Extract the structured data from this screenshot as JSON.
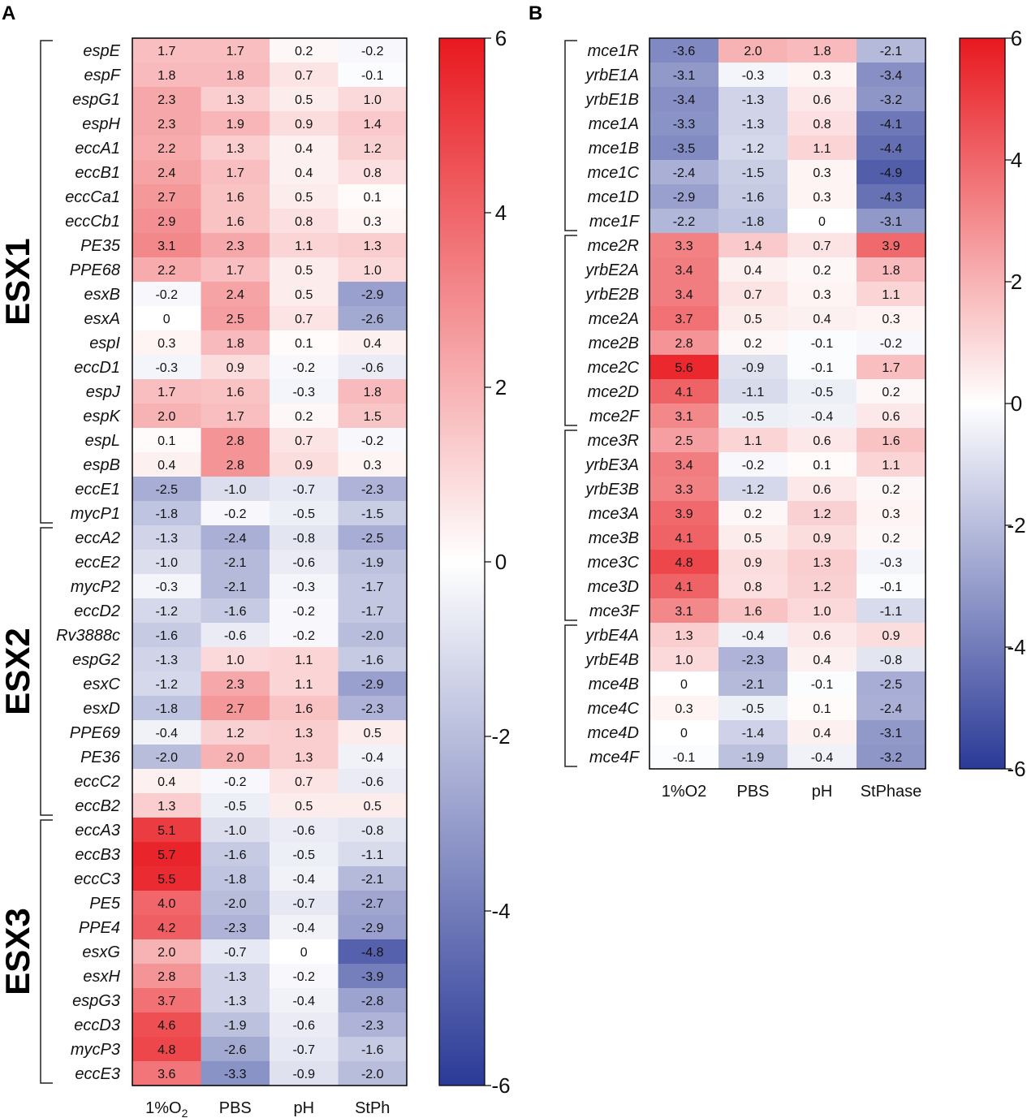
{
  "chart_data": [
    {
      "type": "heatmap",
      "panel_label": "A",
      "columns": [
        "1%O2",
        "PBS",
        "pH",
        "StPh"
      ],
      "column_labels": [
        {
          "main": "1%O",
          "sub": "2"
        },
        {
          "main": "PBS",
          "sub": ""
        },
        {
          "main": "pH",
          "sub": ""
        },
        {
          "main": "StPh",
          "sub": ""
        }
      ],
      "rows": [
        "espE",
        "espF",
        "espG1",
        "espH",
        "eccA1",
        "eccB1",
        "eccCa1",
        "eccCb1",
        "PE35",
        "PPE68",
        "esxB",
        "esxA",
        "espI",
        "eccD1",
        "espJ",
        "espK",
        "espL",
        "espB",
        "eccE1",
        "mycP1",
        "eccA2",
        "eccE2",
        "mycP2",
        "eccD2",
        "Rv3888c",
        "espG2",
        "esxC",
        "esxD",
        "PPE69",
        "PE36",
        "eccC2",
        "eccB2",
        "eccA3",
        "eccB3",
        "eccC3",
        "PE5",
        "PPE4",
        "esxG",
        "esxH",
        "espG3",
        "eccD3",
        "mycP3",
        "eccE3"
      ],
      "values": [
        [
          1.7,
          1.7,
          0.2,
          -0.2
        ],
        [
          1.8,
          1.8,
          0.7,
          -0.1
        ],
        [
          2.3,
          1.3,
          0.5,
          1.0
        ],
        [
          2.3,
          1.9,
          0.9,
          1.4
        ],
        [
          2.2,
          1.3,
          0.4,
          1.2
        ],
        [
          2.4,
          1.7,
          0.4,
          0.8
        ],
        [
          2.7,
          1.6,
          0.5,
          0.1
        ],
        [
          2.9,
          1.6,
          0.8,
          0.3
        ],
        [
          3.1,
          2.3,
          1.1,
          1.3
        ],
        [
          2.2,
          1.7,
          0.5,
          1.0
        ],
        [
          -0.2,
          2.4,
          0.5,
          -2.9
        ],
        [
          0,
          2.5,
          0.7,
          -2.6
        ],
        [
          0.3,
          1.8,
          0.1,
          0.4
        ],
        [
          -0.3,
          0.9,
          -0.2,
          -0.6
        ],
        [
          1.7,
          1.6,
          -0.3,
          1.8
        ],
        [
          2.0,
          1.7,
          0.2,
          1.5
        ],
        [
          0.1,
          2.8,
          0.7,
          -0.2
        ],
        [
          0.4,
          2.8,
          0.9,
          0.3
        ],
        [
          -2.5,
          -1.0,
          -0.7,
          -2.3
        ],
        [
          -1.8,
          -0.2,
          -0.5,
          -1.5
        ],
        [
          -1.3,
          -2.4,
          -0.8,
          -2.5
        ],
        [
          -1.0,
          -2.1,
          -0.6,
          -1.9
        ],
        [
          -0.3,
          -2.1,
          -0.3,
          -1.7
        ],
        [
          -1.2,
          -1.6,
          -0.2,
          -1.7
        ],
        [
          -1.6,
          -0.6,
          -0.2,
          -2.0
        ],
        [
          -1.3,
          1.0,
          1.1,
          -1.6
        ],
        [
          -1.2,
          2.3,
          1.1,
          -2.9
        ],
        [
          -1.8,
          2.7,
          1.6,
          -2.3
        ],
        [
          -0.4,
          1.2,
          1.3,
          0.5
        ],
        [
          -2.0,
          2.0,
          1.3,
          -0.4
        ],
        [
          0.4,
          -0.2,
          0.7,
          -0.6
        ],
        [
          1.3,
          -0.5,
          0.5,
          0.5
        ],
        [
          5.1,
          -1.0,
          -0.6,
          -0.8
        ],
        [
          5.7,
          -1.6,
          -0.5,
          -1.1
        ],
        [
          5.5,
          -1.8,
          -0.4,
          -2.1
        ],
        [
          4.0,
          -2.0,
          -0.7,
          -2.7
        ],
        [
          4.2,
          -2.3,
          -0.4,
          -2.9
        ],
        [
          2.0,
          -0.7,
          0,
          -4.8
        ],
        [
          2.8,
          -1.3,
          -0.2,
          -3.9
        ],
        [
          3.7,
          -1.3,
          -0.4,
          -2.8
        ],
        [
          4.6,
          -1.9,
          -0.6,
          -2.3
        ],
        [
          4.8,
          -2.6,
          -0.7,
          -1.6
        ],
        [
          3.6,
          -3.3,
          -0.9,
          -2.0
        ]
      ],
      "value_labels": [
        [
          "1.7",
          "1.7",
          "0.2",
          "-0.2"
        ],
        [
          "1.8",
          "1.8",
          "0.7",
          "-0.1"
        ],
        [
          "2.3",
          "1.3",
          "0.5",
          "1.0"
        ],
        [
          "2.3",
          "1.9",
          "0.9",
          "1.4"
        ],
        [
          "2.2",
          "1.3",
          "0.4",
          "1.2"
        ],
        [
          "2.4",
          "1.7",
          "0.4",
          "0.8"
        ],
        [
          "2.7",
          "1.6",
          "0.5",
          "0.1"
        ],
        [
          "2.9",
          "1.6",
          "0.8",
          "0.3"
        ],
        [
          "3.1",
          "2.3",
          "1.1",
          "1.3"
        ],
        [
          "2.2",
          "1.7",
          "0.5",
          "1.0"
        ],
        [
          "-0.2",
          "2.4",
          "0.5",
          "-2.9"
        ],
        [
          "0",
          "2.5",
          "0.7",
          "-2.6"
        ],
        [
          "0.3",
          "1.8",
          "0.1",
          "0.4"
        ],
        [
          "-0.3",
          "0.9",
          "-0.2",
          "-0.6"
        ],
        [
          "1.7",
          "1.6",
          "-0.3",
          "1.8"
        ],
        [
          "2.0",
          "1.7",
          "0.2",
          "1.5"
        ],
        [
          "0.1",
          "2.8",
          "0.7",
          "-0.2"
        ],
        [
          "0.4",
          "2.8",
          "0.9",
          "0.3"
        ],
        [
          "-2.5",
          "-1.0",
          "-0.7",
          "-2.3"
        ],
        [
          "-1.8",
          "-0.2",
          "-0.5",
          "-1.5"
        ],
        [
          "-1.3",
          "-2.4",
          "-0.8",
          "-2.5"
        ],
        [
          "-1.0",
          "-2.1",
          "-0.6",
          "-1.9"
        ],
        [
          "-0.3",
          "-2.1",
          "-0.3",
          "-1.7"
        ],
        [
          "-1.2",
          "-1.6",
          "-0.2",
          "-1.7"
        ],
        [
          "-1.6",
          "-0.6",
          "-0.2",
          "-2.0"
        ],
        [
          "-1.3",
          "1.0",
          "1.1",
          "-1.6"
        ],
        [
          "-1.2",
          "2.3",
          "1.1",
          "-2.9"
        ],
        [
          "-1.8",
          "2.7",
          "1.6",
          "-2.3"
        ],
        [
          "-0.4",
          "1.2",
          "1.3",
          "0.5"
        ],
        [
          "-2.0",
          "2.0",
          "1.3",
          "-0.4"
        ],
        [
          "0.4",
          "-0.2",
          "0.7",
          "-0.6"
        ],
        [
          "1.3",
          "-0.5",
          "0.5",
          "0.5"
        ],
        [
          "5.1",
          "-1.0",
          "-0.6",
          "-0.8"
        ],
        [
          "5.7",
          "-1.6",
          "-0.5",
          "-1.1"
        ],
        [
          "5.5",
          "-1.8",
          "-0.4",
          "-2.1"
        ],
        [
          "4.0",
          "-2.0",
          "-0.7",
          "-2.7"
        ],
        [
          "4.2",
          "-2.3",
          "-0.4",
          "-2.9"
        ],
        [
          "2.0",
          "-0.7",
          "0",
          "-4.8"
        ],
        [
          "2.8",
          "-1.3",
          "-0.2",
          "-3.9"
        ],
        [
          "3.7",
          "-1.3",
          "-0.4",
          "-2.8"
        ],
        [
          "4.6",
          "-1.9",
          "-0.6",
          "-2.3"
        ],
        [
          "4.8",
          "-2.6",
          "-0.7",
          "-1.6"
        ],
        [
          "3.6",
          "-3.3",
          "-0.9",
          "-2.0"
        ]
      ],
      "groups": [
        {
          "label": "ESX1",
          "first_row": 0,
          "last_row": 19
        },
        {
          "label": "ESX2",
          "first_row": 20,
          "last_row": 31
        },
        {
          "label": "ESX3",
          "first_row": 32,
          "last_row": 42
        }
      ],
      "colorbar": {
        "range": [
          -6,
          6
        ],
        "ticks": [
          6,
          4,
          2,
          0,
          -2,
          -4,
          -6
        ],
        "tick_labels": [
          "6",
          "4",
          "2",
          "0",
          "-2",
          "-4",
          "-6"
        ],
        "low_color": "#2b3a97",
        "mid_color": "#ffffff",
        "high_color": "#e8191f"
      }
    },
    {
      "type": "heatmap",
      "panel_label": "B",
      "columns": [
        "1%O2",
        "PBS",
        "pH",
        "StPhase"
      ],
      "column_labels": [
        {
          "main": "1%O2",
          "sub": ""
        },
        {
          "main": "PBS",
          "sub": ""
        },
        {
          "main": "pH",
          "sub": ""
        },
        {
          "main": "StPhase",
          "sub": ""
        }
      ],
      "rows": [
        "mce1R",
        "yrbE1A",
        "yrbE1B",
        "mce1A",
        "mce1B",
        "mce1C",
        "mce1D",
        "mce1F",
        "mce2R",
        "yrbE2A",
        "yrbE2B",
        "mce2A",
        "mce2B",
        "mce2C",
        "mce2D",
        "mce2F",
        "mce3R",
        "yrbE3A",
        "yrbE3B",
        "mce3A",
        "mce3B",
        "mce3C",
        "mce3D",
        "mce3F",
        "yrbE4A",
        "yrbE4B",
        "mce4B",
        "mce4C",
        "mce4D",
        "mce4F"
      ],
      "values": [
        [
          -3.6,
          2.0,
          1.8,
          -2.1
        ],
        [
          -3.1,
          -0.3,
          0.3,
          -3.4
        ],
        [
          -3.4,
          -1.3,
          0.6,
          -3.2
        ],
        [
          -3.3,
          -1.3,
          0.8,
          -4.1
        ],
        [
          -3.5,
          -1.2,
          1.1,
          -4.4
        ],
        [
          -2.4,
          -1.5,
          0.3,
          -4.9
        ],
        [
          -2.9,
          -1.6,
          0.3,
          -4.3
        ],
        [
          -2.2,
          -1.8,
          0,
          -3.1
        ],
        [
          3.3,
          1.4,
          0.7,
          3.9
        ],
        [
          3.4,
          0.4,
          0.2,
          1.8
        ],
        [
          3.4,
          0.7,
          0.3,
          1.1
        ],
        [
          3.7,
          0.5,
          0.4,
          0.3
        ],
        [
          2.8,
          0.2,
          -0.1,
          -0.2
        ],
        [
          5.6,
          -0.9,
          -0.1,
          1.7
        ],
        [
          4.1,
          -1.1,
          -0.5,
          0.2
        ],
        [
          3.1,
          -0.5,
          -0.4,
          0.6
        ],
        [
          2.5,
          1.1,
          0.6,
          1.6
        ],
        [
          3.4,
          -0.2,
          0.1,
          1.1
        ],
        [
          3.3,
          -1.2,
          0.6,
          0.2
        ],
        [
          3.9,
          0.2,
          1.2,
          0.3
        ],
        [
          4.1,
          0.5,
          0.9,
          0.2
        ],
        [
          4.8,
          0.9,
          1.3,
          -0.3
        ],
        [
          4.1,
          0.8,
          1.2,
          -0.1
        ],
        [
          3.1,
          1.6,
          1.0,
          -1.1
        ],
        [
          1.3,
          -0.4,
          0.6,
          0.9
        ],
        [
          1.0,
          -2.3,
          0.4,
          -0.8
        ],
        [
          0,
          -2.1,
          -0.1,
          -2.5
        ],
        [
          0.3,
          -0.5,
          0.1,
          -2.4
        ],
        [
          0,
          -1.4,
          0.4,
          -3.1
        ],
        [
          -0.1,
          -1.9,
          -0.4,
          -3.2
        ]
      ],
      "value_labels": [
        [
          "-3.6",
          "2.0",
          "1.8",
          "-2.1"
        ],
        [
          "-3.1",
          "-0.3",
          "0.3",
          "-3.4"
        ],
        [
          "-3.4",
          "-1.3",
          "0.6",
          "-3.2"
        ],
        [
          "-3.3",
          "-1.3",
          "0.8",
          "-4.1"
        ],
        [
          "-3.5",
          "-1.2",
          "1.1",
          "-4.4"
        ],
        [
          "-2.4",
          "-1.5",
          "0.3",
          "-4.9"
        ],
        [
          "-2.9",
          "-1.6",
          "0.3",
          "-4.3"
        ],
        [
          "-2.2",
          "-1.8",
          "0",
          "-3.1"
        ],
        [
          "3.3",
          "1.4",
          "0.7",
          "3.9"
        ],
        [
          "3.4",
          "0.4",
          "0.2",
          "1.8"
        ],
        [
          "3.4",
          "0.7",
          "0.3",
          "1.1"
        ],
        [
          "3.7",
          "0.5",
          "0.4",
          "0.3"
        ],
        [
          "2.8",
          "0.2",
          "-0.1",
          "-0.2"
        ],
        [
          "5.6",
          "-0.9",
          "-0.1",
          "1.7"
        ],
        [
          "4.1",
          "-1.1",
          "-0.5",
          "0.2"
        ],
        [
          "3.1",
          "-0.5",
          "-0.4",
          "0.6"
        ],
        [
          "2.5",
          "1.1",
          "0.6",
          "1.6"
        ],
        [
          "3.4",
          "-0.2",
          "0.1",
          "1.1"
        ],
        [
          "3.3",
          "-1.2",
          "0.6",
          "0.2"
        ],
        [
          "3.9",
          "0.2",
          "1.2",
          "0.3"
        ],
        [
          "4.1",
          "0.5",
          "0.9",
          "0.2"
        ],
        [
          "4.8",
          "0.9",
          "1.3",
          "-0.3"
        ],
        [
          "4.1",
          "0.8",
          "1.2",
          "-0.1"
        ],
        [
          "3.1",
          "1.6",
          "1.0",
          "-1.1"
        ],
        [
          "1.3",
          "-0.4",
          "0.6",
          "0.9"
        ],
        [
          "1.0",
          "-2.3",
          "0.4",
          "-0.8"
        ],
        [
          "0",
          "-2.1",
          "-0.1",
          "-2.5"
        ],
        [
          "0.3",
          "-0.5",
          "0.1",
          "-2.4"
        ],
        [
          "0",
          "-1.4",
          "0.4",
          "-3.1"
        ],
        [
          "-0.1",
          "-1.9",
          "-0.4",
          "-3.2"
        ]
      ],
      "groups": [
        {
          "label": "",
          "first_row": 0,
          "last_row": 7
        },
        {
          "label": "",
          "first_row": 8,
          "last_row": 15
        },
        {
          "label": "",
          "first_row": 16,
          "last_row": 23
        },
        {
          "label": "",
          "first_row": 24,
          "last_row": 29
        }
      ],
      "colorbar": {
        "range": [
          -6,
          6
        ],
        "ticks": [
          6,
          4,
          2,
          0,
          -2,
          -4,
          -6
        ],
        "tick_labels": [
          "6",
          "4",
          "2",
          "0",
          "-2",
          "-4",
          "-6"
        ],
        "low_color": "#2b3a97",
        "mid_color": "#ffffff",
        "high_color": "#e8191f"
      }
    }
  ]
}
